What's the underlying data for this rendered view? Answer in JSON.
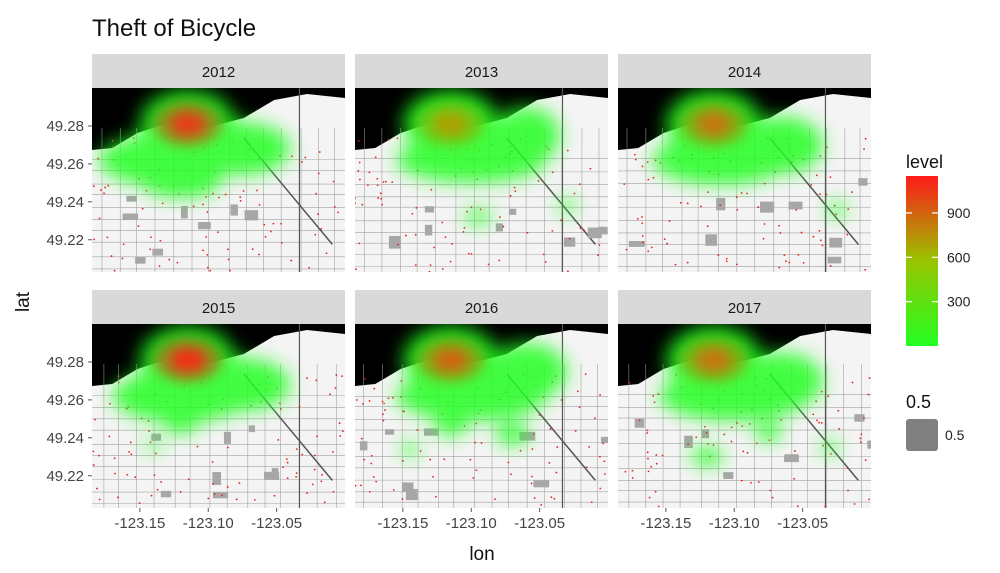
{
  "chart_data": {
    "type": "heatmap",
    "title": "Theft of Bicycle",
    "xlabel": "lon",
    "ylabel": "lat",
    "facets": [
      "2012",
      "2013",
      "2014",
      "2015",
      "2016",
      "2017"
    ],
    "layout": {
      "rows": 2,
      "cols": 3
    },
    "xlim": [
      -123.185,
      -123.0
    ],
    "ylim": [
      49.203,
      49.3
    ],
    "x_ticks": [
      -123.15,
      -123.1,
      -123.05
    ],
    "x_tick_labels": [
      "-123.15",
      "-123.10",
      "-123.05"
    ],
    "y_ticks": [
      49.22,
      49.24,
      49.26,
      49.28
    ],
    "y_tick_labels": [
      "49.22",
      "49.24",
      "49.26",
      "49.28"
    ],
    "fill_legend": {
      "title": "level",
      "min": 0,
      "max": 1150,
      "breaks": [
        300,
        600,
        900
      ],
      "break_labels": [
        "300",
        "600",
        "900"
      ],
      "low_color": "#22ff22",
      "high_color": "#ff1a1a"
    },
    "alpha_legend": {
      "title": "0.5",
      "label": "0.5",
      "color": "#808080"
    },
    "peak": {
      "lon": -123.115,
      "lat": 49.281
    },
    "point_color": "#e8201c",
    "panels": [
      {
        "year": "2012",
        "peak_level": 1050,
        "hotspots": [
          {
            "lon": -123.115,
            "lat": 49.281,
            "r_lon": 0.035,
            "r_lat": 0.018
          },
          {
            "lon": -123.13,
            "lat": 49.262,
            "r_lon": 0.05,
            "r_lat": 0.014
          },
          {
            "lon": -123.075,
            "lat": 49.268,
            "r_lon": 0.035,
            "r_lat": 0.014
          },
          {
            "lon": -123.12,
            "lat": 49.252,
            "r_lon": 0.03,
            "r_lat": 0.01
          }
        ]
      },
      {
        "year": "2013",
        "peak_level": 700,
        "hotspots": [
          {
            "lon": -123.115,
            "lat": 49.281,
            "r_lon": 0.035,
            "r_lat": 0.018
          },
          {
            "lon": -123.1,
            "lat": 49.262,
            "r_lon": 0.055,
            "r_lat": 0.012
          },
          {
            "lon": -123.06,
            "lat": 49.275,
            "r_lon": 0.025,
            "r_lat": 0.015
          },
          {
            "lon": -123.03,
            "lat": 49.238,
            "r_lon": 0.006,
            "r_lat": 0.004
          },
          {
            "lon": -123.095,
            "lat": 49.232,
            "r_lon": 0.01,
            "r_lat": 0.004
          }
        ]
      },
      {
        "year": "2014",
        "peak_level": 850,
        "hotspots": [
          {
            "lon": -123.115,
            "lat": 49.281,
            "r_lon": 0.035,
            "r_lat": 0.018
          },
          {
            "lon": -123.11,
            "lat": 49.262,
            "r_lon": 0.05,
            "r_lat": 0.013
          },
          {
            "lon": -123.065,
            "lat": 49.27,
            "r_lon": 0.03,
            "r_lat": 0.015
          },
          {
            "lon": -123.025,
            "lat": 49.236,
            "r_lon": 0.007,
            "r_lat": 0.004
          }
        ]
      },
      {
        "year": "2015",
        "peak_level": 1100,
        "hotspots": [
          {
            "lon": -123.115,
            "lat": 49.281,
            "r_lon": 0.035,
            "r_lat": 0.018
          },
          {
            "lon": -123.12,
            "lat": 49.262,
            "r_lon": 0.05,
            "r_lat": 0.014
          },
          {
            "lon": -123.075,
            "lat": 49.268,
            "r_lon": 0.035,
            "r_lat": 0.014
          },
          {
            "lon": -123.14,
            "lat": 49.236,
            "r_lon": 0.006,
            "r_lat": 0.003
          },
          {
            "lon": -123.12,
            "lat": 49.247,
            "r_lon": 0.012,
            "r_lat": 0.005
          }
        ]
      },
      {
        "year": "2016",
        "peak_level": 900,
        "hotspots": [
          {
            "lon": -123.115,
            "lat": 49.281,
            "r_lon": 0.035,
            "r_lat": 0.018
          },
          {
            "lon": -123.1,
            "lat": 49.262,
            "r_lon": 0.055,
            "r_lat": 0.013
          },
          {
            "lon": -123.06,
            "lat": 49.275,
            "r_lon": 0.03,
            "r_lat": 0.015
          },
          {
            "lon": -123.07,
            "lat": 49.242,
            "r_lon": 0.012,
            "r_lat": 0.006
          },
          {
            "lon": -123.145,
            "lat": 49.234,
            "r_lon": 0.006,
            "r_lat": 0.004
          },
          {
            "lon": -123.115,
            "lat": 49.246,
            "r_lon": 0.012,
            "r_lat": 0.005
          }
        ]
      },
      {
        "year": "2017",
        "peak_level": 850,
        "hotspots": [
          {
            "lon": -123.115,
            "lat": 49.281,
            "r_lon": 0.035,
            "r_lat": 0.018
          },
          {
            "lon": -123.1,
            "lat": 49.262,
            "r_lon": 0.055,
            "r_lat": 0.013
          },
          {
            "lon": -123.065,
            "lat": 49.27,
            "r_lon": 0.03,
            "r_lat": 0.015
          },
          {
            "lon": -123.12,
            "lat": 49.23,
            "r_lon": 0.012,
            "r_lat": 0.005
          },
          {
            "lon": -123.03,
            "lat": 49.235,
            "r_lon": 0.006,
            "r_lat": 0.004
          },
          {
            "lon": -123.075,
            "lat": 49.243,
            "r_lon": 0.01,
            "r_lat": 0.005
          }
        ]
      }
    ]
  }
}
